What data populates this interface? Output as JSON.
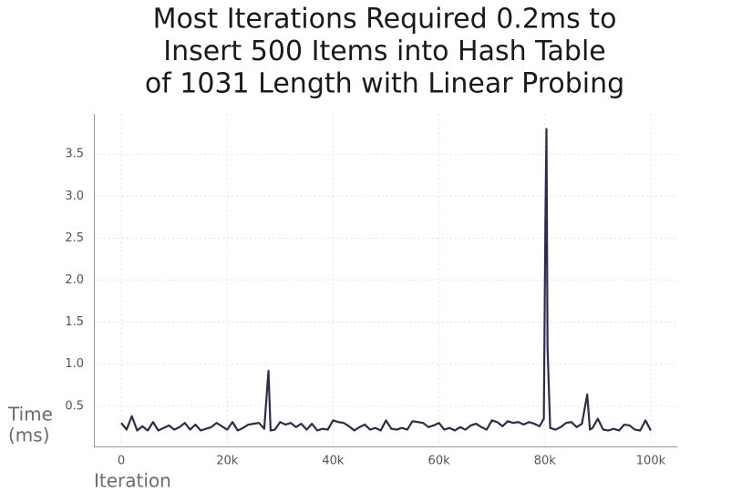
{
  "chart_data": {
    "type": "line",
    "title": [
      "Most Iterations Required 0.2ms to",
      "Insert 500 Items into Hash Table",
      "of 1031 Length with Linear Probing"
    ],
    "xlabel": "Iteration",
    "ylabel": [
      "Time",
      "(ms)"
    ],
    "color": "#2b2d4a",
    "grid": true,
    "xlim": [
      -5000,
      105000
    ],
    "ylim": [
      0.02,
      3.98
    ],
    "xticks": [
      0,
      {
        "value": 20000,
        "label": "20k"
      },
      {
        "value": 40000,
        "label": "40k"
      },
      {
        "value": 60000,
        "label": "60k"
      },
      {
        "value": 80000,
        "label": "80k"
      },
      {
        "value": 100000,
        "label": "100k"
      }
    ],
    "yticks": [
      0.5,
      {
        "value": 1,
        "label": "1.0"
      },
      1.5,
      {
        "value": 2,
        "label": "2.0"
      },
      2.5,
      {
        "value": 3,
        "label": "3.0"
      },
      3.5
    ],
    "x": [
      0,
      1000,
      2000,
      3000,
      4000,
      5000,
      6000,
      7000,
      8000,
      9000,
      10000,
      11000,
      12000,
      13000,
      14000,
      15000,
      16000,
      17000,
      18000,
      19000,
      20000,
      21000,
      22000,
      23000,
      24000,
      25000,
      26000,
      27000,
      27800,
      28200,
      29000,
      30000,
      31000,
      32000,
      33000,
      34000,
      35000,
      36000,
      37000,
      38000,
      39000,
      40000,
      41000,
      42000,
      43000,
      44000,
      45000,
      46000,
      47000,
      48000,
      49000,
      50000,
      51000,
      52000,
      53000,
      54000,
      55000,
      56000,
      57000,
      58000,
      59000,
      60000,
      61000,
      62000,
      63000,
      64000,
      65000,
      66000,
      67000,
      68000,
      69000,
      70000,
      71000,
      72000,
      73000,
      74000,
      75000,
      76000,
      77000,
      78000,
      79000,
      79800,
      80100,
      80300,
      80500,
      81000,
      82000,
      83000,
      84000,
      85000,
      86000,
      87000,
      88000,
      88500,
      89000,
      90000,
      91000,
      92000,
      93000,
      94000,
      95000,
      96000,
      97000,
      98000,
      99000,
      100000
    ],
    "values": [
      0.3,
      0.22,
      0.38,
      0.21,
      0.26,
      0.21,
      0.31,
      0.21,
      0.24,
      0.27,
      0.22,
      0.25,
      0.3,
      0.22,
      0.28,
      0.21,
      0.23,
      0.25,
      0.3,
      0.26,
      0.22,
      0.31,
      0.21,
      0.24,
      0.28,
      0.29,
      0.3,
      0.23,
      0.92,
      0.21,
      0.22,
      0.31,
      0.28,
      0.3,
      0.25,
      0.29,
      0.22,
      0.29,
      0.21,
      0.23,
      0.22,
      0.33,
      0.31,
      0.3,
      0.26,
      0.21,
      0.25,
      0.28,
      0.22,
      0.24,
      0.21,
      0.33,
      0.23,
      0.22,
      0.24,
      0.22,
      0.32,
      0.31,
      0.3,
      0.25,
      0.27,
      0.3,
      0.22,
      0.24,
      0.21,
      0.25,
      0.22,
      0.27,
      0.29,
      0.25,
      0.22,
      0.33,
      0.31,
      0.26,
      0.32,
      0.3,
      0.31,
      0.28,
      0.31,
      0.29,
      0.26,
      0.35,
      2.7,
      3.8,
      1.2,
      0.24,
      0.22,
      0.25,
      0.3,
      0.31,
      0.25,
      0.29,
      0.64,
      0.22,
      0.24,
      0.35,
      0.22,
      0.21,
      0.23,
      0.21,
      0.28,
      0.27,
      0.22,
      0.21,
      0.33,
      0.21
    ]
  }
}
